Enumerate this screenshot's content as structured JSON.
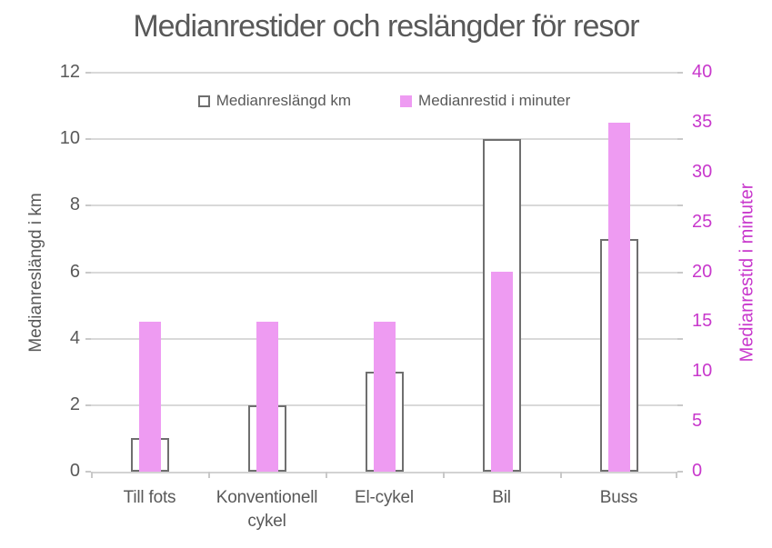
{
  "chart_data": {
    "type": "bar",
    "title": "Medianrestider och reslängder för resor",
    "categories": [
      "Till fots",
      "Konventionell cykel",
      "El-cykel",
      "Bil",
      "Buss"
    ],
    "series": [
      {
        "name": "Medianreslängd km",
        "axis": "left",
        "marker": "outline",
        "values": [
          1,
          2,
          3,
          10,
          7
        ]
      },
      {
        "name": "Medianrestid i minuter",
        "axis": "right",
        "marker": "fill",
        "values": [
          15,
          15,
          15,
          20,
          35
        ]
      }
    ],
    "left_axis": {
      "title": "Medianreslängd i km",
      "min": 0,
      "max": 12,
      "ticks": [
        0,
        2,
        4,
        6,
        8,
        10,
        12
      ]
    },
    "right_axis": {
      "title": "Medianrestid i minuter",
      "min": 0,
      "max": 40,
      "ticks": [
        0,
        5,
        10,
        15,
        20,
        25,
        30,
        35,
        40
      ]
    },
    "legend_position": "top",
    "grid": true,
    "colors": {
      "bar_fill": "#ee9bf2",
      "bar_outline_border": "#6f6f6f",
      "bar_outline_fill": "#ffffff",
      "right_axis_text": "#c838cc",
      "text": "#595959",
      "gridline": "#d9d9d9"
    }
  }
}
